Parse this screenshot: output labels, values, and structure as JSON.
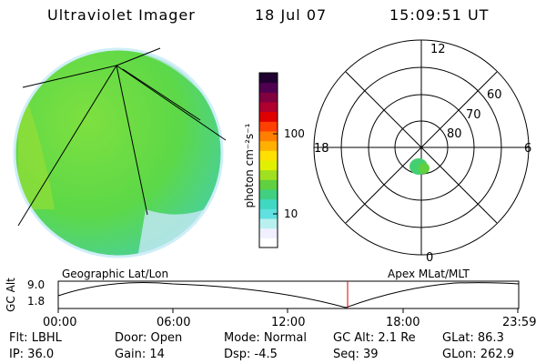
{
  "header": {
    "title": "Ultraviolet Imager",
    "date": "18 Jul 07",
    "time": "15:09:51 UT"
  },
  "colorbar": {
    "unit_label": "photon cm⁻²s⁻¹",
    "ticks": [
      "100",
      "10"
    ],
    "colors": [
      "#ffffff",
      "#f0f0ff",
      "#b8f0f0",
      "#60e0e0",
      "#40d8c0",
      "#40d080",
      "#60d040",
      "#a0e020",
      "#e0f000",
      "#ffe000",
      "#ffb000",
      "#ff8000",
      "#ff4000",
      "#e00000",
      "#b00030",
      "#800040",
      "#500050",
      "#200030"
    ]
  },
  "globe": {
    "panel_label": "Geographic Lat/Lon",
    "base_color": "#64dc3c",
    "rim_color": "#cfeef8"
  },
  "polar": {
    "panel_label": "Apex MLat/MLT",
    "mlt_labels": {
      "top": "12",
      "left": "18",
      "right": "6",
      "bottom": "0"
    },
    "lat_labels": [
      "60",
      "70",
      "80"
    ],
    "spot_color": "#44d070"
  },
  "timeline": {
    "ylabel": "GC Alt",
    "yticks": [
      "9.0",
      "1.8"
    ],
    "xticks": [
      "00:00",
      "06:00",
      "12:00",
      "18:00",
      "23:59"
    ],
    "marker_color": "#dd0000"
  },
  "info": {
    "filter": "Flt: LBHL",
    "door": "Door: Open",
    "mode": "Mode: Normal",
    "gc_alt": "GC Alt: 2.1 Re",
    "glat": "GLat:  86.3",
    "ip": "IP: 36.0",
    "gain": "Gain: 14",
    "dsp": "Dsp:    -4.5",
    "seq": "Seq: 39",
    "glon": "GLon: 262.9"
  }
}
